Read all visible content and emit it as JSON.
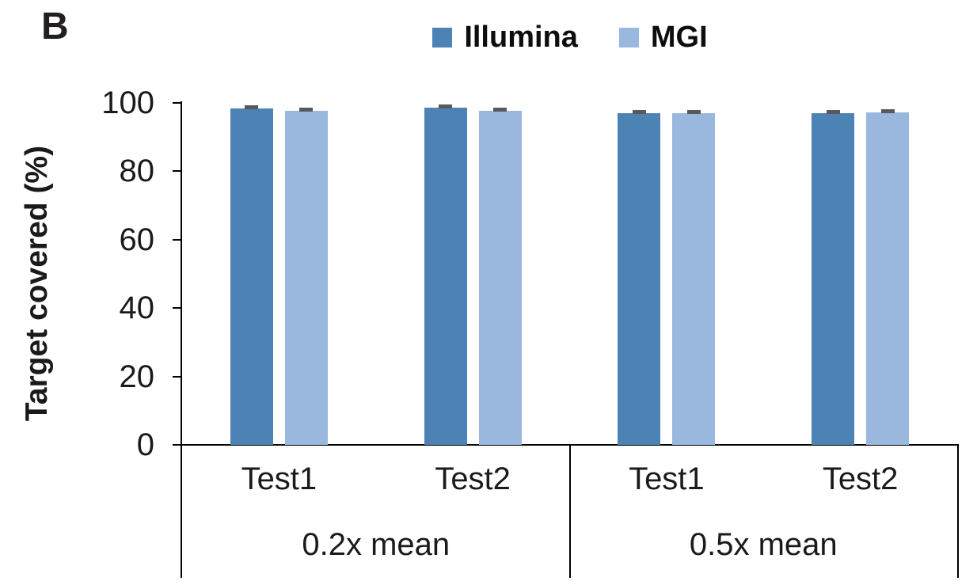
{
  "panel_label": "B",
  "colors": {
    "illumina": "#4d82b4",
    "mgi": "#9ab7dd",
    "error_bar": "#595959",
    "axis": "#000000",
    "text": "#1a1a1a"
  },
  "chart_data": {
    "type": "bar",
    "title": "",
    "xlabel": "",
    "ylabel": "Target covered (%)",
    "ylim": [
      0,
      100
    ],
    "yticks": [
      0,
      20,
      40,
      60,
      80,
      100
    ],
    "grid": false,
    "legend_position": "top",
    "group_labels": [
      "Test1",
      "Test2",
      "Test1",
      "Test2"
    ],
    "super_groups": [
      {
        "label": "0.2x mean",
        "span": [
          0,
          1
        ]
      },
      {
        "label": "0.5x mean",
        "span": [
          2,
          3
        ]
      }
    ],
    "series": [
      {
        "name": "Illumina",
        "color": "#4d82b4",
        "values": [
          98.4,
          98.5,
          96.9,
          96.9
        ],
        "errors": [
          0.4,
          0.4,
          0.4,
          0.4
        ]
      },
      {
        "name": "MGI",
        "color": "#9ab7dd",
        "values": [
          97.7,
          97.8,
          96.9,
          97.3
        ],
        "errors": [
          0.4,
          0.4,
          0.4,
          0.4
        ]
      }
    ]
  }
}
